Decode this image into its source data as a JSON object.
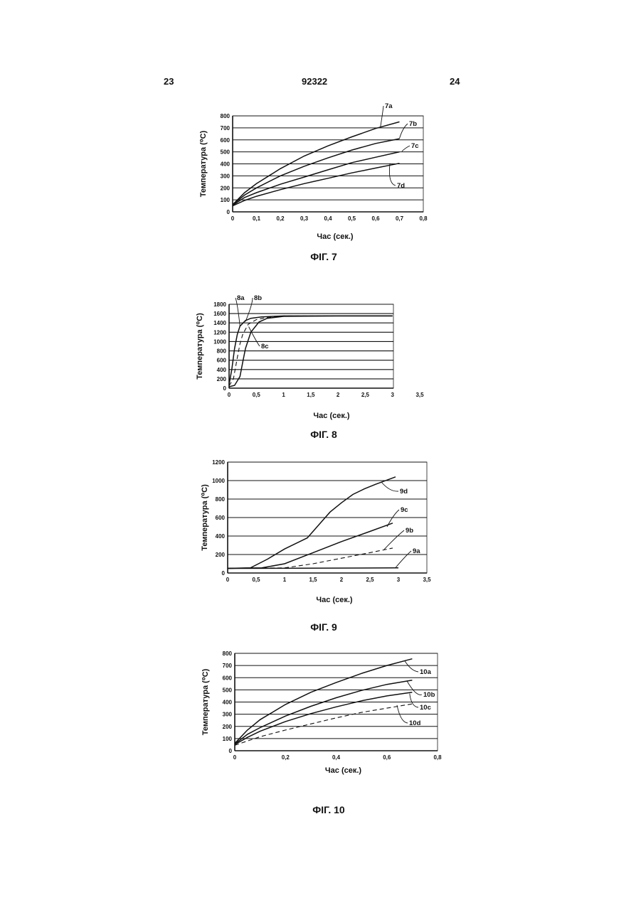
{
  "page": {
    "left_number": "23",
    "center_number": "92322",
    "right_number": "24"
  },
  "chart_data": [
    {
      "type": "line",
      "caption": "ФІГ. 7",
      "ylabel": "Температура (⁰С)",
      "xlabel": "Час (сек.)",
      "xlim": [
        0,
        0.8
      ],
      "ylim": [
        0,
        800
      ],
      "x_ticks": [
        "0",
        "0,1",
        "0,2",
        "0,3",
        "0,4",
        "0,5",
        "0,6",
        "0,7",
        "0,8"
      ],
      "y_ticks": [
        "0",
        "100",
        "200",
        "300",
        "400",
        "500",
        "600",
        "700",
        "800"
      ],
      "grid": true,
      "series": [
        {
          "name": "7a",
          "x": [
            0,
            0.05,
            0.1,
            0.2,
            0.3,
            0.4,
            0.5,
            0.6,
            0.7
          ],
          "y": [
            60,
            160,
            235,
            360,
            465,
            550,
            625,
            695,
            750
          ]
        },
        {
          "name": "7b",
          "x": [
            0,
            0.05,
            0.1,
            0.2,
            0.3,
            0.4,
            0.5,
            0.6,
            0.7
          ],
          "y": [
            60,
            140,
            200,
            300,
            380,
            450,
            515,
            570,
            610
          ]
        },
        {
          "name": "7c",
          "x": [
            0,
            0.05,
            0.1,
            0.2,
            0.3,
            0.4,
            0.5,
            0.6,
            0.7
          ],
          "y": [
            55,
            120,
            160,
            230,
            290,
            350,
            410,
            455,
            500
          ]
        },
        {
          "name": "7d",
          "x": [
            0,
            0.05,
            0.1,
            0.2,
            0.3,
            0.4,
            0.5,
            0.6,
            0.7
          ],
          "y": [
            50,
            95,
            130,
            185,
            235,
            280,
            325,
            365,
            405
          ]
        }
      ]
    },
    {
      "type": "line",
      "caption": "ФІГ. 8",
      "ylabel": "Температура (⁰С)",
      "xlabel": "Час (сек.)",
      "xlim": [
        0,
        3.5
      ],
      "ylim": [
        0,
        1800
      ],
      "x_ticks": [
        "0",
        "0,5",
        "1",
        "1,5",
        "2",
        "2,5",
        "3",
        "3,5"
      ],
      "y_ticks": [
        "0",
        "200",
        "400",
        "600",
        "800",
        "1000",
        "1200",
        "1400",
        "1600",
        "1800"
      ],
      "grid": true,
      "series": [
        {
          "name": "8a",
          "x": [
            0,
            0.05,
            0.1,
            0.15,
            0.2,
            0.3,
            0.4,
            0.6,
            1,
            2,
            3
          ],
          "y": [
            80,
            400,
            850,
            1150,
            1330,
            1450,
            1500,
            1530,
            1550,
            1550,
            1550
          ]
        },
        {
          "name": "8b",
          "x": [
            0,
            0.08,
            0.15,
            0.2,
            0.25,
            0.35,
            0.5,
            0.7,
            1,
            2,
            3
          ],
          "y": [
            50,
            200,
            650,
            950,
            1150,
            1370,
            1470,
            1520,
            1550,
            1550,
            1550
          ]
        },
        {
          "name": "8c",
          "x": [
            0,
            0.1,
            0.2,
            0.25,
            0.3,
            0.4,
            0.55,
            0.7,
            1,
            2,
            3
          ],
          "y": [
            30,
            60,
            250,
            550,
            850,
            1200,
            1420,
            1500,
            1540,
            1550,
            1550
          ]
        }
      ]
    },
    {
      "type": "line",
      "caption": "ФІГ. 9",
      "ylabel": "Температура (⁰С)",
      "xlabel": "Час (сек.)",
      "xlim": [
        0,
        3.5
      ],
      "ylim": [
        0,
        1200
      ],
      "x_ticks": [
        "0",
        "0,5",
        "1",
        "1,5",
        "2",
        "2,5",
        "3",
        "3,5"
      ],
      "y_ticks": [
        "0",
        "200",
        "400",
        "600",
        "800",
        "1000",
        "1200"
      ],
      "grid": true,
      "series": [
        {
          "name": "9a",
          "x": [
            0,
            3
          ],
          "y": [
            50,
            55
          ]
        },
        {
          "name": "9b",
          "x": [
            0,
            1,
            1.5,
            2,
            2.5,
            2.9
          ],
          "y": [
            50,
            55,
            100,
            160,
            220,
            270
          ]
        },
        {
          "name": "9c",
          "x": [
            0,
            0.6,
            1,
            1.5,
            2,
            2.5,
            2.9
          ],
          "y": [
            50,
            55,
            100,
            220,
            340,
            450,
            540
          ]
        },
        {
          "name": "9d",
          "x": [
            0,
            0.4,
            0.7,
            1,
            1.4,
            1.6,
            1.8,
            2,
            2.2,
            2.4,
            2.6,
            2.95
          ],
          "y": [
            50,
            55,
            150,
            260,
            380,
            520,
            660,
            760,
            850,
            910,
            960,
            1040
          ]
        }
      ]
    },
    {
      "type": "line",
      "caption": "ФІГ. 10",
      "ylabel": "Температура (⁰С)",
      "xlabel": "Час (сек.)",
      "xlim": [
        0,
        0.8
      ],
      "ylim": [
        0,
        800
      ],
      "x_ticks": [
        "0",
        "0,2",
        "0,4",
        "0,6",
        "0,8"
      ],
      "y_ticks": [
        "0",
        "100",
        "200",
        "300",
        "400",
        "500",
        "600",
        "700",
        "800"
      ],
      "grid": true,
      "series": [
        {
          "name": "10a",
          "x": [
            0,
            0.05,
            0.1,
            0.2,
            0.3,
            0.4,
            0.5,
            0.6,
            0.7
          ],
          "y": [
            60,
            170,
            255,
            380,
            480,
            560,
            635,
            700,
            755
          ]
        },
        {
          "name": "10b",
          "x": [
            0,
            0.05,
            0.1,
            0.2,
            0.3,
            0.4,
            0.5,
            0.6,
            0.7
          ],
          "y": [
            55,
            135,
            190,
            285,
            365,
            435,
            495,
            545,
            580
          ]
        },
        {
          "name": "10c",
          "x": [
            0,
            0.05,
            0.1,
            0.2,
            0.3,
            0.4,
            0.5,
            0.6,
            0.7
          ],
          "y": [
            50,
            110,
            160,
            240,
            305,
            360,
            410,
            450,
            480
          ]
        },
        {
          "name": "10d",
          "x": [
            0,
            0.05,
            0.1,
            0.2,
            0.3,
            0.4,
            0.5,
            0.6,
            0.7
          ],
          "y": [
            45,
            80,
            115,
            170,
            220,
            270,
            315,
            350,
            385
          ]
        }
      ]
    }
  ]
}
